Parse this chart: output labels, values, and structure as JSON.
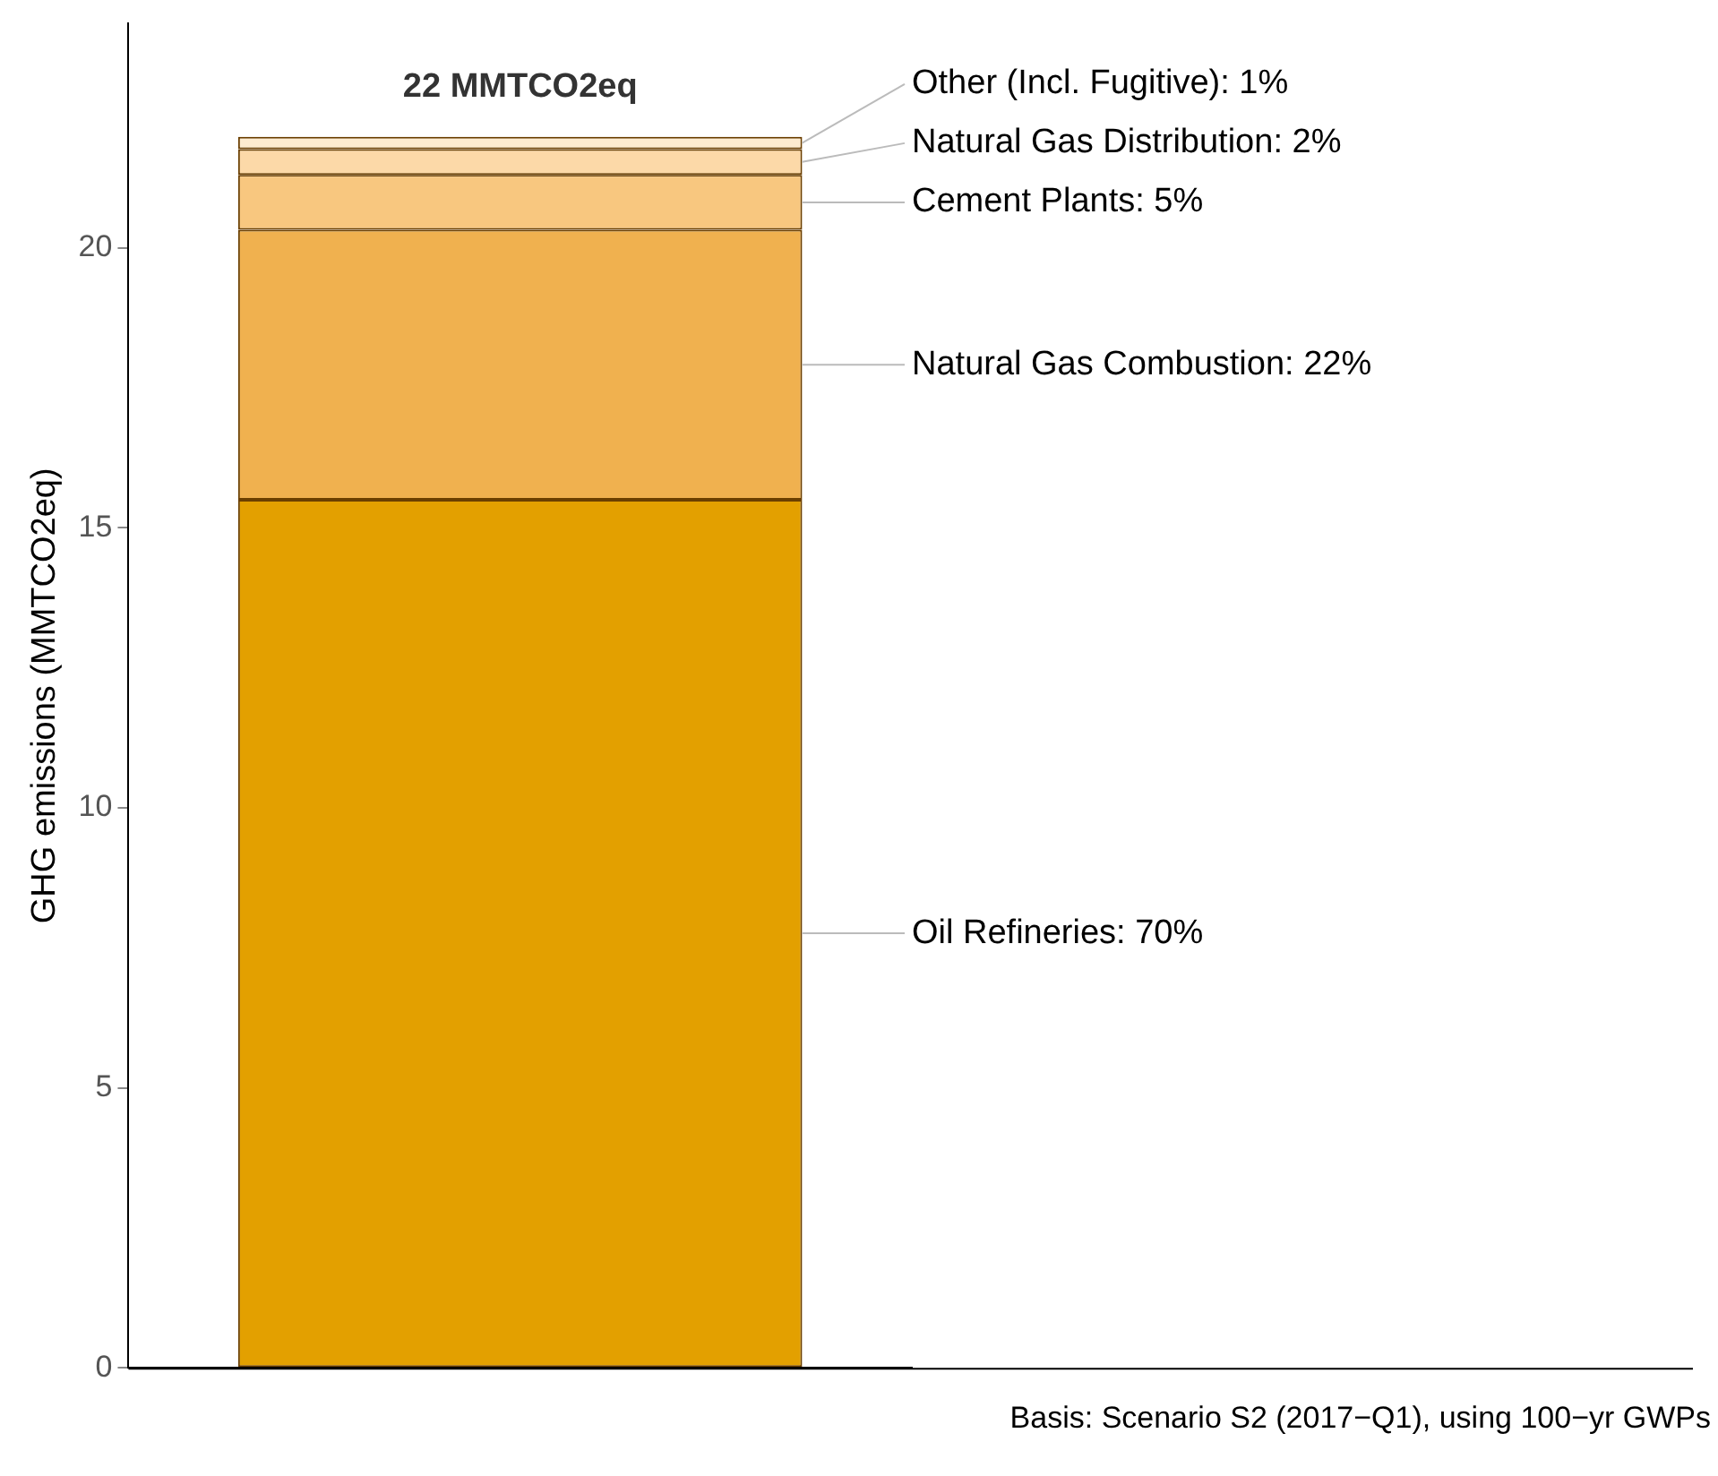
{
  "chart_data": {
    "type": "bar",
    "stacked": true,
    "categories": [
      null
    ],
    "series": [
      {
        "name": "Oil Refineries: 70%",
        "color": "#e3a000",
        "values": [
          15.5
        ]
      },
      {
        "name": "Natural Gas Combustion: 22%",
        "color": "#f0b14f",
        "values": [
          4.82
        ]
      },
      {
        "name": "Cement Plants: 5%",
        "color": "#f8c77f",
        "values": [
          0.98
        ]
      },
      {
        "name": "Natural Gas Distribution: 2%",
        "color": "#fcd9a8",
        "values": [
          0.46
        ]
      },
      {
        "name": "Other (Incl. Fugitive): 1%",
        "color": "#fdebd0",
        "values": [
          0.22
        ]
      }
    ],
    "totals": [
      "22 MMTCO2eq"
    ],
    "ylabel": "GHG emissions (MMTCO2eq)",
    "ylim": [
      0,
      24
    ],
    "yticks": [
      0,
      5,
      10,
      15,
      20
    ],
    "grid": false,
    "legend": false,
    "annotations": [
      "Basis: Scenario S2 (2017−Q1), using 100−yr GWPs"
    ]
  }
}
